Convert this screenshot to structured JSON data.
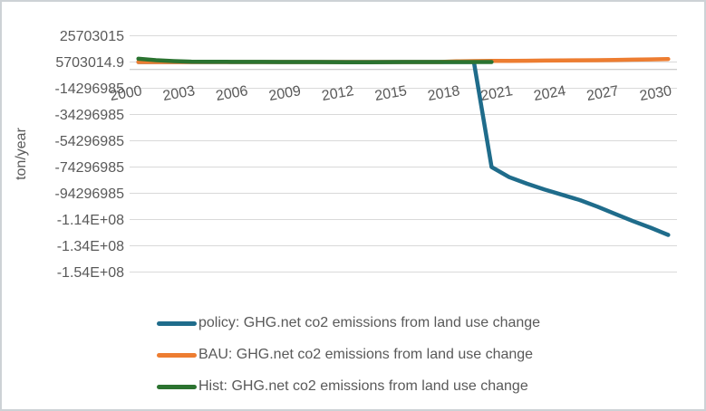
{
  "chart_data": {
    "type": "line",
    "title": "",
    "xlabel": "",
    "ylabel": "ton/year",
    "grid": true,
    "legend_position": "bottom-left",
    "text_color": "#595959",
    "grid_color": "#d9d9d9",
    "axis_color": "#bfbfbf",
    "background_color": "#ffffff",
    "y_axis": {
      "tick_labels": [
        "25703015",
        "5703014.9",
        "-14296985",
        "-34296985",
        "-54296985",
        "-74296985",
        "-94296985",
        "-1.14E+08",
        "-1.34E+08",
        "-1.54E+08"
      ],
      "tick_values": [
        25703015,
        5703014.9,
        -14296985,
        -34296985,
        -54296985,
        -74296985,
        -94296985,
        -114296985,
        -134296985,
        -154296985
      ],
      "max": 25703015,
      "min": -154296985,
      "major_unit": 20000000,
      "axis_crosses_at": 0
    },
    "x_axis": {
      "tick_labels": [
        "2000",
        "2003",
        "2006",
        "2009",
        "2012",
        "2015",
        "2018",
        "2021",
        "2024",
        "2027",
        "2030"
      ],
      "tick_years": [
        2000,
        2003,
        2006,
        2009,
        2012,
        2015,
        2018,
        2021,
        2024,
        2027,
        2030
      ],
      "range": [
        2000,
        2030
      ],
      "label_rotation_deg": -10
    },
    "series": [
      {
        "name": "policy: GHG.net co2 emissions from land use change",
        "color": "#1f6c8b",
        "x": [
          2000,
          2001,
          2002,
          2003,
          2004,
          2005,
          2006,
          2007,
          2008,
          2009,
          2010,
          2011,
          2012,
          2013,
          2014,
          2015,
          2016,
          2017,
          2018,
          2019,
          2020,
          2021,
          2022,
          2023,
          2024,
          2025,
          2026,
          2027,
          2028,
          2029,
          2030
        ],
        "values": [
          5703014.9,
          5703014.9,
          5703014.9,
          5703014.9,
          5703014.9,
          5703014.9,
          5703014.9,
          5703014.9,
          5703014.9,
          5703014.9,
          5703014.9,
          5703014.9,
          5703014.9,
          5703014.9,
          5703014.9,
          5703014.9,
          5703014.9,
          5703014.9,
          5703014.9,
          5703014.9,
          -74296985,
          -82000000,
          -87000000,
          -91500000,
          -95500000,
          -99500000,
          -104500000,
          -110000000,
          -115500000,
          -120500000,
          -126000000
        ]
      },
      {
        "name": "BAU: GHG.net co2 emissions from land use change",
        "color": "#ed7d31",
        "x": [
          2000,
          2001,
          2002,
          2003,
          2004,
          2005,
          2006,
          2007,
          2008,
          2009,
          2010,
          2011,
          2012,
          2013,
          2014,
          2015,
          2016,
          2017,
          2018,
          2019,
          2020,
          2021,
          2022,
          2023,
          2024,
          2025,
          2026,
          2027,
          2028,
          2029,
          2030
        ],
        "values": [
          5703014.9,
          5703014.9,
          5703014.9,
          5703014.9,
          5703014.9,
          5703014.9,
          5703014.9,
          5703014.9,
          5703014.9,
          5703014.9,
          5703014.9,
          5703014.9,
          5703014.9,
          5703014.9,
          5703014.9,
          5703014.9,
          5703014.9,
          5703014.9,
          6200000,
          6400000,
          6500000,
          6600000,
          6700000,
          6800000,
          6900000,
          7000000,
          7100000,
          7300000,
          7500000,
          7700000,
          8000000
        ]
      },
      {
        "name": "Hist: GHG.net co2 emissions from land use change",
        "color": "#2b7330",
        "x": [
          2000,
          2001,
          2002,
          2003,
          2004,
          2005,
          2006,
          2007,
          2008,
          2009,
          2010,
          2011,
          2012,
          2013,
          2014,
          2015,
          2016,
          2017,
          2018,
          2019,
          2020
        ],
        "values": [
          8200000,
          7100000,
          6400000,
          6000000,
          5900000,
          5850000,
          5800000,
          5750000,
          5703014.9,
          5703014.9,
          5703014.9,
          5600000,
          5500000,
          5550000,
          5650000,
          5703014.9,
          5703014.9,
          5703014.9,
          5703014.9,
          5703014.9,
          5703014.9
        ]
      }
    ]
  }
}
